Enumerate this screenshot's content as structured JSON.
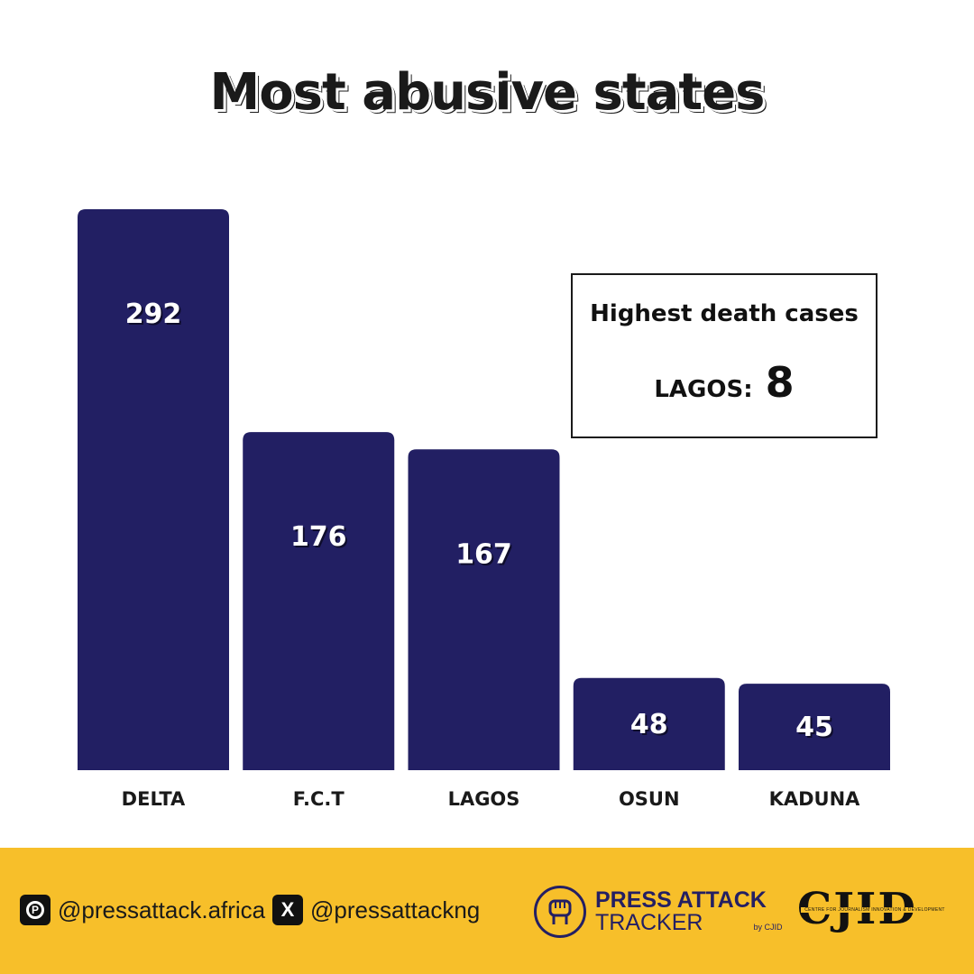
{
  "title": "Most abusive states",
  "chart_data": {
    "type": "bar",
    "title": "Most abusive states",
    "categories": [
      "DELTA",
      "F.C.T",
      "LAGOS",
      "OSUN",
      "KADUNA"
    ],
    "values": [
      292,
      176,
      167,
      48,
      45
    ],
    "ylim": [
      0,
      292
    ],
    "xlabel": "",
    "ylabel": "",
    "bar_color": "#221f63",
    "label_color": "#ffffff"
  },
  "callout": {
    "title": "Highest death cases",
    "state": "LAGOS:",
    "value": "8"
  },
  "footer": {
    "background": "#f7bf2a",
    "pinterest_handle": "@pressattack.africa",
    "x_handle": "@pressattackng",
    "tracker_line1": "PRESS ATTACK",
    "tracker_line2": "TRACKER",
    "tracker_by": "by CJID",
    "org_mark": "CJID",
    "org_name": "CENTRE FOR JOURNALISM INNOVATION & DEVELOPMENT"
  },
  "icons": {
    "pinterest": "pinterest-icon",
    "x": "x-icon",
    "tracker_logo": "fist-icon"
  }
}
